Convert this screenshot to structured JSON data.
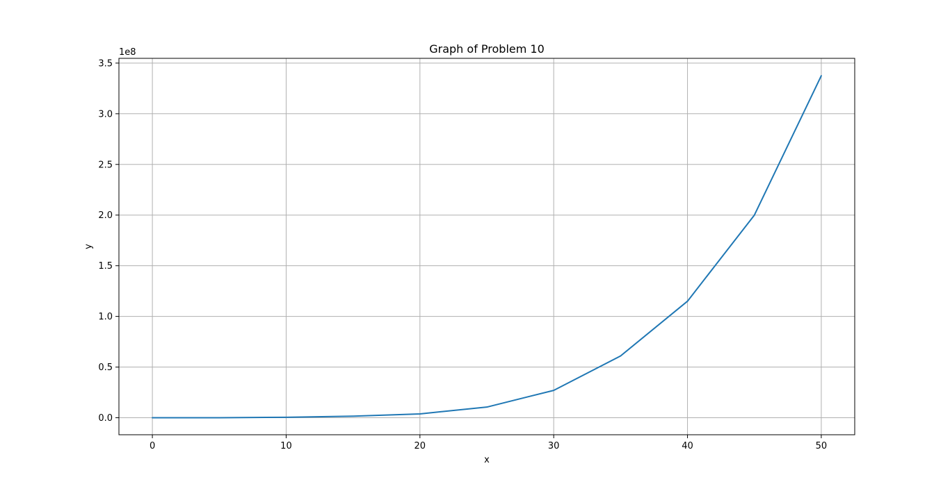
{
  "chart_data": {
    "type": "line",
    "title": "Graph of Problem 10",
    "xlabel": "x",
    "ylabel": "y",
    "y_offset_label": "1e8",
    "xlim": [
      -2.5,
      52.5
    ],
    "ylim": [
      -16800000,
      354700000
    ],
    "x_ticks": [
      0,
      10,
      20,
      30,
      40,
      50
    ],
    "x_tick_labels": [
      "0",
      "10",
      "20",
      "30",
      "40",
      "50"
    ],
    "y_ticks": [
      0,
      50000000,
      100000000,
      150000000,
      200000000,
      250000000,
      300000000,
      350000000
    ],
    "y_tick_labels": [
      "0.0",
      "0.5",
      "1.0",
      "1.5",
      "2.0",
      "2.5",
      "3.0",
      "3.5"
    ],
    "grid": true,
    "series": [
      {
        "color": "#1f77b4",
        "x": [
          0,
          5,
          10,
          15,
          20,
          25,
          30,
          35,
          40,
          45,
          50
        ],
        "values": [
          0,
          30000,
          450000,
          1500000,
          3800000,
          10500000,
          27000000,
          61000000,
          115000000,
          200000000,
          337500000
        ]
      }
    ]
  }
}
